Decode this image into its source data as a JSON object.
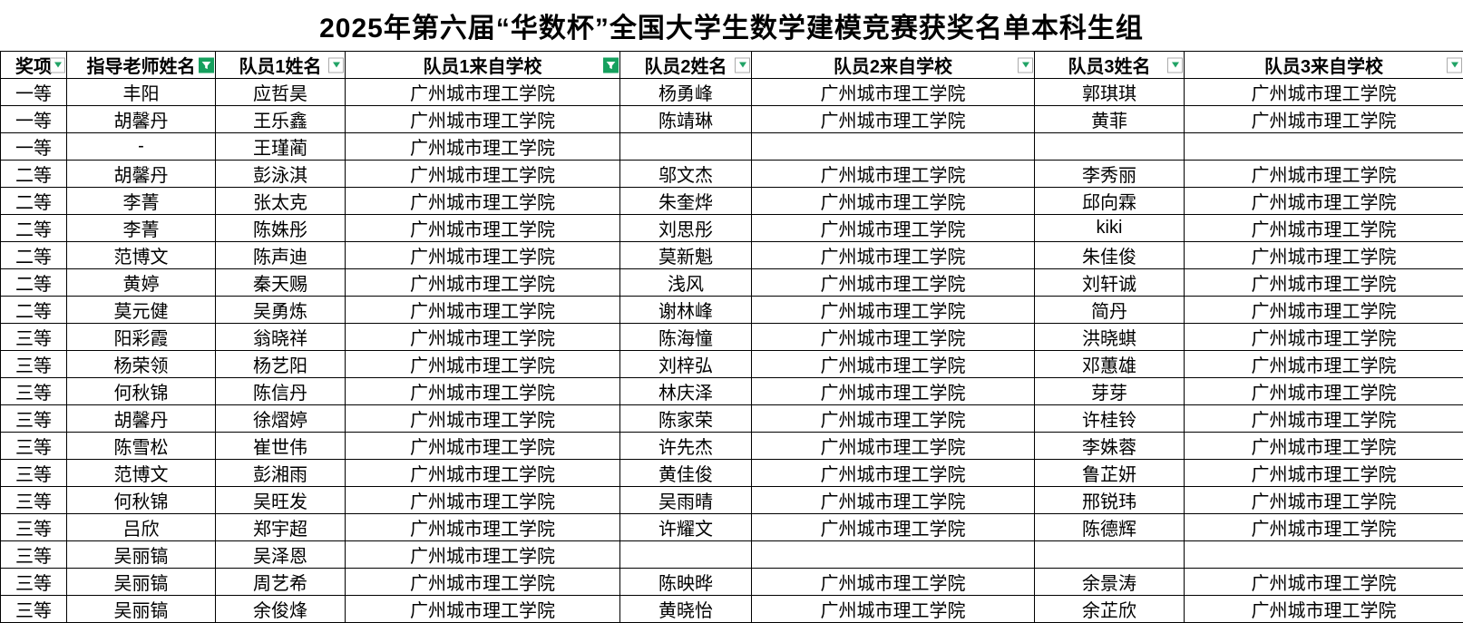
{
  "title": "2025年第六届“华数杯”全国大学生数学建模竞赛获奖名单本科生组",
  "colors": {
    "grid_border": "#000000",
    "filter_green": "#16a05e",
    "arrow_green": "#21a366",
    "background": "#ffffff"
  },
  "table": {
    "columns": [
      {
        "label": "奖项",
        "icon": "filter-dropdown-icon"
      },
      {
        "label": "指导老师姓名",
        "icon": "filter-applied-icon"
      },
      {
        "label": "队员1姓名",
        "icon": "filter-dropdown-icon"
      },
      {
        "label": "队员1来自学校",
        "icon": "filter-applied-icon"
      },
      {
        "label": "队员2姓名",
        "icon": "filter-dropdown-icon"
      },
      {
        "label": "队员2来自学校",
        "icon": "filter-dropdown-icon"
      },
      {
        "label": "队员3姓名",
        "icon": "filter-dropdown-icon"
      },
      {
        "label": "队员3来自学校",
        "icon": "filter-dropdown-icon"
      }
    ],
    "rows": [
      [
        "一等",
        "丰阳",
        "应哲昊",
        "广州城市理工学院",
        "杨勇峰",
        "广州城市理工学院",
        "郭琪琪",
        "广州城市理工学院"
      ],
      [
        "一等",
        "胡馨丹",
        "王乐鑫",
        "广州城市理工学院",
        "陈靖琳",
        "广州城市理工学院",
        "黄菲",
        "广州城市理工学院"
      ],
      [
        "一等",
        "-",
        "王瑾蔺",
        "广州城市理工学院",
        "",
        "",
        "",
        ""
      ],
      [
        "二等",
        "胡馨丹",
        "彭泳淇",
        "广州城市理工学院",
        "邬文杰",
        "广州城市理工学院",
        "李秀丽",
        "广州城市理工学院"
      ],
      [
        "二等",
        "李菁",
        "张太克",
        "广州城市理工学院",
        "朱奎烨",
        "广州城市理工学院",
        "邱向霖",
        "广州城市理工学院"
      ],
      [
        "二等",
        "李菁",
        "陈姝彤",
        "广州城市理工学院",
        "刘思彤",
        "广州城市理工学院",
        "kiki",
        "广州城市理工学院"
      ],
      [
        "二等",
        "范博文",
        "陈声迪",
        "广州城市理工学院",
        "莫新魁",
        "广州城市理工学院",
        "朱佳俊",
        "广州城市理工学院"
      ],
      [
        "二等",
        "黄婷",
        "秦天赐",
        "广州城市理工学院",
        "浅风",
        "广州城市理工学院",
        "刘轩诚",
        "广州城市理工学院"
      ],
      [
        "二等",
        "莫元健",
        "吴勇炼",
        "广州城市理工学院",
        "谢林峰",
        "广州城市理工学院",
        "简丹",
        "广州城市理工学院"
      ],
      [
        "三等",
        "阳彩霞",
        "翁晓祥",
        "广州城市理工学院",
        "陈海憧",
        "广州城市理工学院",
        "洪晓蜞",
        "广州城市理工学院"
      ],
      [
        "三等",
        "杨荣领",
        "杨艺阳",
        "广州城市理工学院",
        "刘梓弘",
        "广州城市理工学院",
        "邓蕙雄",
        "广州城市理工学院"
      ],
      [
        "三等",
        "何秋锦",
        "陈信丹",
        "广州城市理工学院",
        "林庆泽",
        "广州城市理工学院",
        "芽芽",
        "广州城市理工学院"
      ],
      [
        "三等",
        "胡馨丹",
        "徐熠婷",
        "广州城市理工学院",
        "陈家荣",
        "广州城市理工学院",
        "许桂铃",
        "广州城市理工学院"
      ],
      [
        "三等",
        "陈雪松",
        "崔世伟",
        "广州城市理工学院",
        "许先杰",
        "广州城市理工学院",
        "李姝蓉",
        "广州城市理工学院"
      ],
      [
        "三等",
        "范博文",
        "彭湘雨",
        "广州城市理工学院",
        "黄佳俊",
        "广州城市理工学院",
        "鲁芷妍",
        "广州城市理工学院"
      ],
      [
        "三等",
        "何秋锦",
        "吴旺发",
        "广州城市理工学院",
        "吴雨晴",
        "广州城市理工学院",
        "邢锐玮",
        "广州城市理工学院"
      ],
      [
        "三等",
        "吕欣",
        "郑宇超",
        "广州城市理工学院",
        "许耀文",
        "广州城市理工学院",
        "陈德辉",
        "广州城市理工学院"
      ],
      [
        "三等",
        "吴丽镐",
        "吴泽恩",
        "广州城市理工学院",
        "",
        "",
        "",
        ""
      ],
      [
        "三等",
        "吴丽镐",
        "周艺希",
        "广州城市理工学院",
        "陈映晔",
        "广州城市理工学院",
        "余景涛",
        "广州城市理工学院"
      ],
      [
        "三等",
        "吴丽镐",
        "余俊烽",
        "广州城市理工学院",
        "黄晓怡",
        "广州城市理工学院",
        "余芷欣",
        "广州城市理工学院"
      ]
    ]
  }
}
